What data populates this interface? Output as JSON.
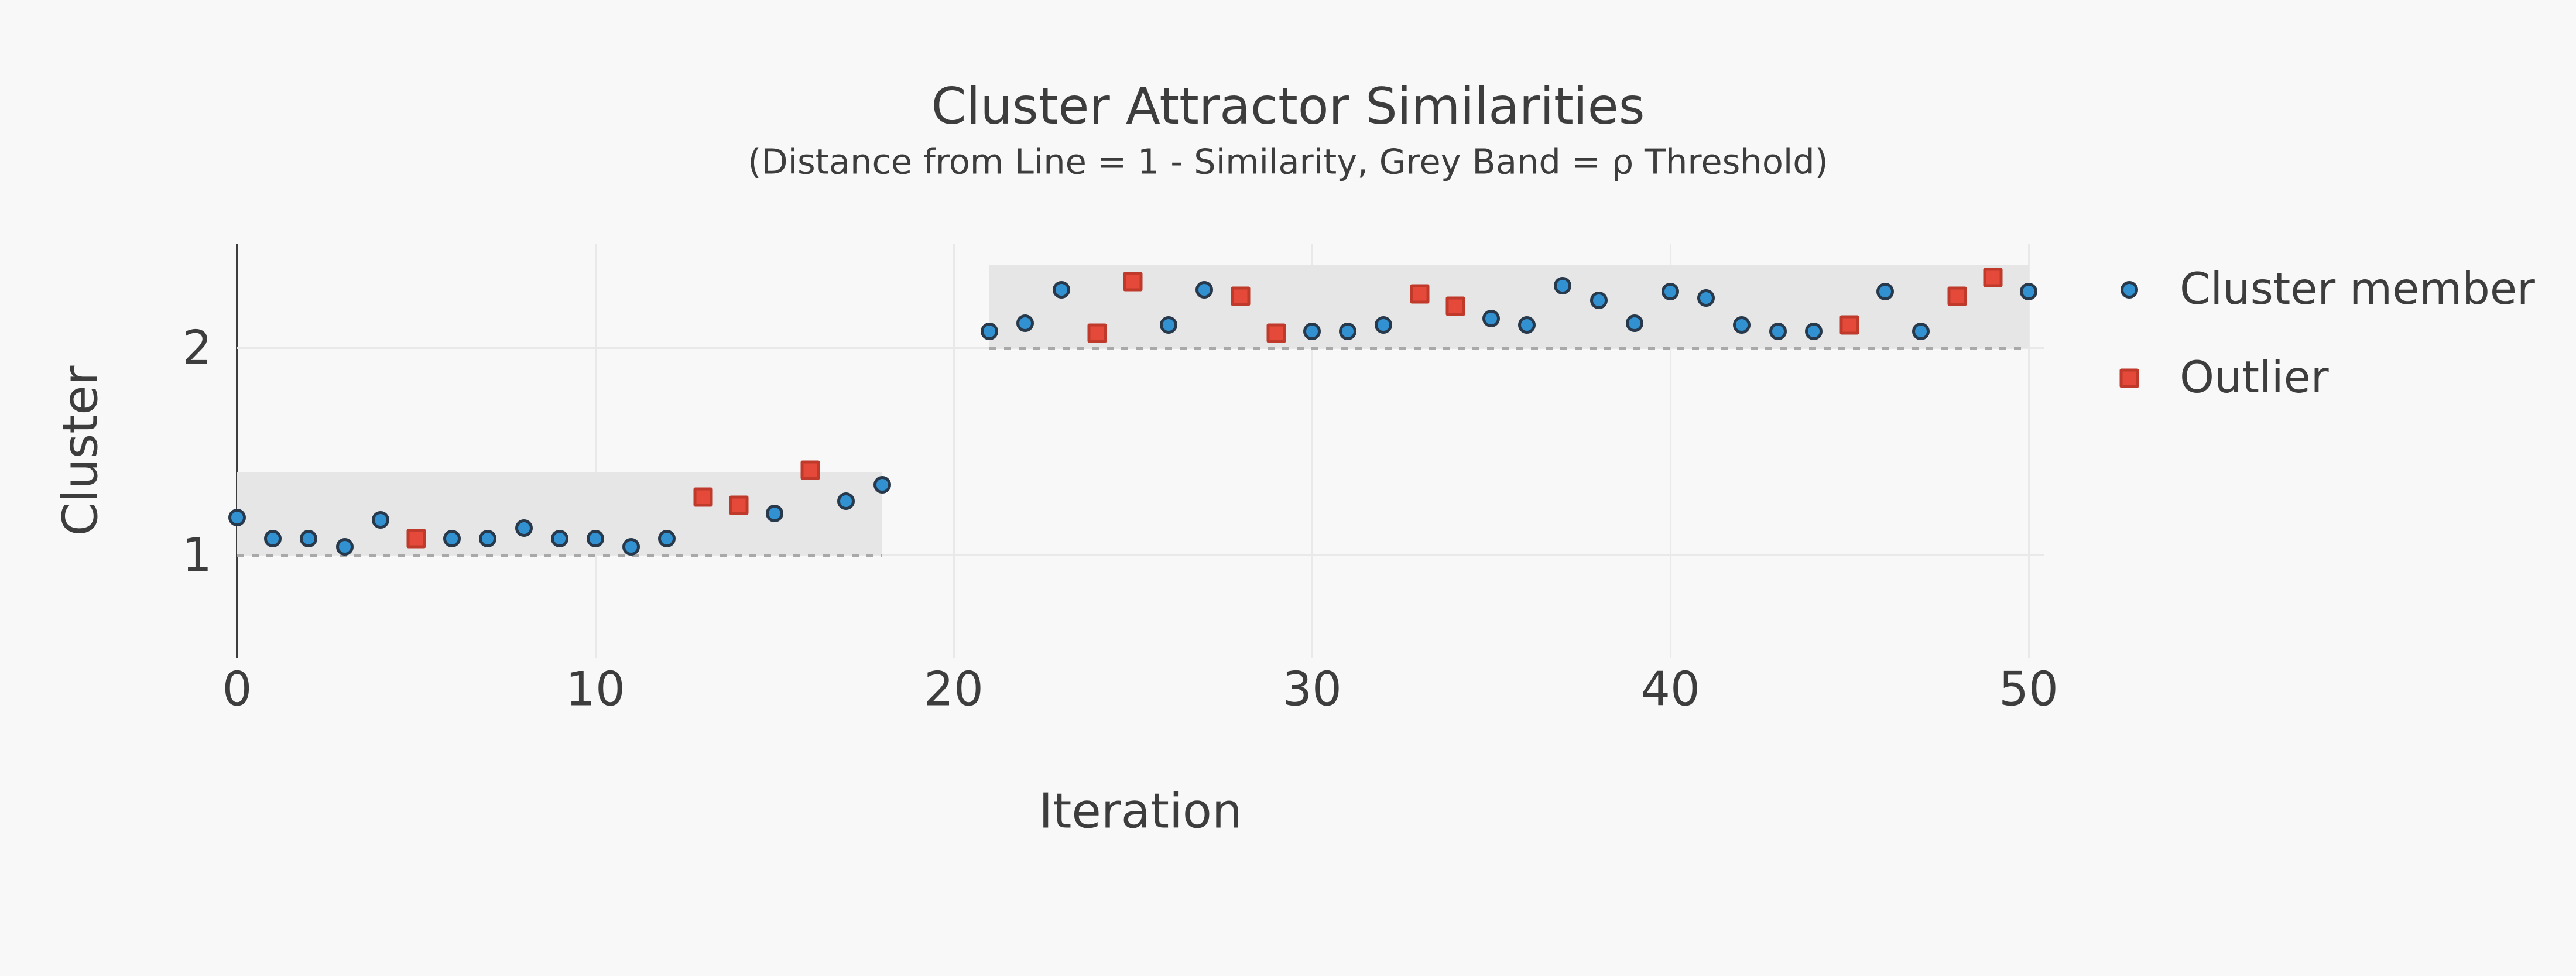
{
  "title": "Cluster Attractor Similarities",
  "subtitle": "(Distance from Line = 1 - Similarity, Grey Band = ρ Threshold)",
  "chart_data": {
    "type": "scatter",
    "title": "Cluster Attractor Similarities",
    "subtitle": "(Distance from Line = 1 - Similarity, Grey Band = ρ Threshold)",
    "xlabel": "Iteration",
    "ylabel": "Cluster",
    "x_ticks": [
      0,
      10,
      20,
      30,
      40,
      50
    ],
    "y_ticks": [
      2,
      1
    ],
    "xlim": [
      0,
      50.5
    ],
    "grid": true,
    "legend_position": "right",
    "rho_band_offset": 0.4,
    "bands": [
      {
        "cluster": 1,
        "x_start": 0,
        "x_end": 18
      },
      {
        "cluster": 2,
        "x_start": 21,
        "x_end": 50
      }
    ],
    "series": [
      {
        "name": "Cluster member",
        "marker": "circle",
        "fill": "#3191d1",
        "stroke": "#28394b",
        "points_format": [
          "iteration",
          "cluster",
          "distance_from_line"
        ],
        "points": [
          [
            0,
            1,
            0.18
          ],
          [
            1,
            1,
            0.08
          ],
          [
            2,
            1,
            0.08
          ],
          [
            3,
            1,
            0.04
          ],
          [
            4,
            1,
            0.17
          ],
          [
            6,
            1,
            0.08
          ],
          [
            7,
            1,
            0.08
          ],
          [
            8,
            1,
            0.13
          ],
          [
            9,
            1,
            0.08
          ],
          [
            10,
            1,
            0.08
          ],
          [
            11,
            1,
            0.04
          ],
          [
            12,
            1,
            0.08
          ],
          [
            15,
            1,
            0.2
          ],
          [
            17,
            1,
            0.26
          ],
          [
            18,
            1,
            0.34
          ],
          [
            21,
            2,
            0.08
          ],
          [
            22,
            2,
            0.12
          ],
          [
            23,
            2,
            0.28
          ],
          [
            26,
            2,
            0.11
          ],
          [
            27,
            2,
            0.28
          ],
          [
            30,
            2,
            0.08
          ],
          [
            31,
            2,
            0.08
          ],
          [
            32,
            2,
            0.11
          ],
          [
            35,
            2,
            0.14
          ],
          [
            36,
            2,
            0.11
          ],
          [
            37,
            2,
            0.3
          ],
          [
            38,
            2,
            0.23
          ],
          [
            39,
            2,
            0.12
          ],
          [
            40,
            2,
            0.27
          ],
          [
            41,
            2,
            0.24
          ],
          [
            42,
            2,
            0.11
          ],
          [
            43,
            2,
            0.08
          ],
          [
            44,
            2,
            0.08
          ],
          [
            46,
            2,
            0.27
          ],
          [
            47,
            2,
            0.08
          ],
          [
            50,
            2,
            0.27
          ]
        ]
      },
      {
        "name": "Outlier",
        "marker": "square",
        "fill": "#e4493a",
        "stroke": "#bf3a2b",
        "points_format": [
          "iteration",
          "cluster",
          "distance_from_line"
        ],
        "points": [
          [
            5,
            1,
            0.08
          ],
          [
            13,
            1,
            0.28
          ],
          [
            14,
            1,
            0.24
          ],
          [
            16,
            1,
            0.41
          ],
          [
            24,
            2,
            0.07
          ],
          [
            25,
            2,
            0.32
          ],
          [
            28,
            2,
            0.25
          ],
          [
            29,
            2,
            0.07
          ],
          [
            33,
            2,
            0.26
          ],
          [
            34,
            2,
            0.2
          ],
          [
            45,
            2,
            0.11
          ],
          [
            48,
            2,
            0.25
          ],
          [
            49,
            2,
            0.34
          ]
        ]
      }
    ],
    "legend": [
      {
        "label": "Cluster member",
        "marker": "circle"
      },
      {
        "label": "Outlier",
        "marker": "square"
      }
    ]
  },
  "colors": {
    "background": "#f8f8f8",
    "text": "#3d3d3d",
    "spine": "#3d3d3d",
    "gridline": "#e9e9e9",
    "band": "#e6e6e6",
    "threshold_dash": "#a9a9a9",
    "member_fill": "#3191d1",
    "member_stroke": "#28394b",
    "outlier_fill": "#e4493a",
    "outlier_stroke": "#bf3a2b"
  }
}
